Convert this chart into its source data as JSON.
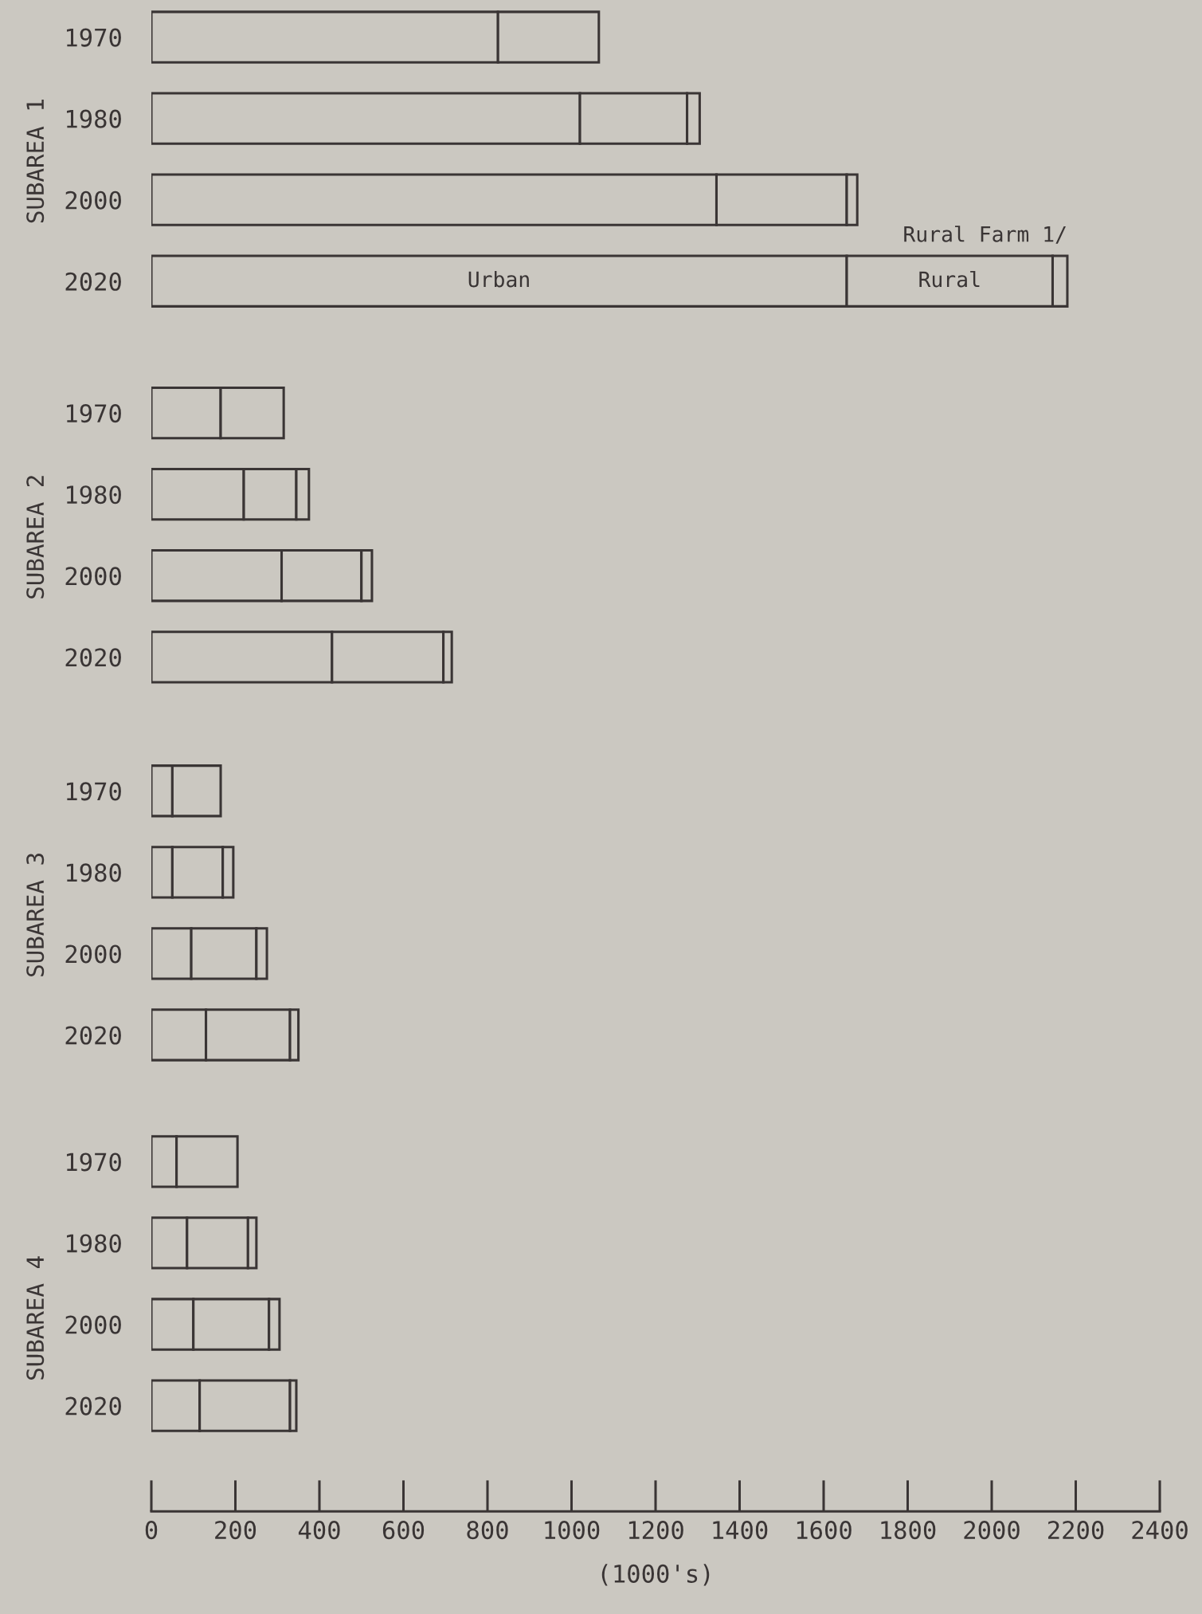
{
  "chart_data": [
    {
      "type": "bar",
      "orientation": "horizontal",
      "stacked": true,
      "ylabel": "SUBAREA 1",
      "categories": [
        "1970",
        "1980",
        "2000",
        "2020"
      ],
      "xlim": [
        0,
        2400
      ],
      "xticks": [
        0,
        200,
        400,
        600,
        800,
        1000,
        1200,
        1400,
        1600,
        1800,
        2000,
        2200,
        2400
      ],
      "tick_labels": "y",
      "grid": false,
      "legend": false,
      "series": [
        {
          "name": "Urban",
          "color": "#cbc8c1",
          "values": [
            825,
            1020,
            1345,
            1655
          ]
        },
        {
          "name": "Rural",
          "color": "#cbc8c1",
          "values": [
            240,
            255,
            310,
            490
          ]
        },
        {
          "name": "Rural Farm 1/",
          "color": "#cbc8c1",
          "values": [
            null,
            30,
            25,
            35
          ]
        }
      ]
    },
    {
      "type": "bar",
      "orientation": "horizontal",
      "stacked": true,
      "ylabel": "SUBAREA 2",
      "categories": [
        "1970",
        "1980",
        "2000",
        "2020"
      ],
      "xlim": [
        0,
        2400
      ],
      "xticks": [
        0,
        200,
        400,
        600,
        800,
        1000,
        1200,
        1400,
        1600,
        1800,
        2000,
        2200,
        2400
      ],
      "tick_labels": "y",
      "grid": false,
      "legend": false,
      "series": [
        {
          "color": "#cbc8c1",
          "values": [
            165,
            220,
            310,
            430
          ]
        },
        {
          "color": "#cbc8c1",
          "values": [
            150,
            125,
            190,
            265
          ]
        },
        {
          "color": "#cbc8c1",
          "values": [
            null,
            30,
            25,
            20
          ]
        }
      ]
    },
    {
      "type": "bar",
      "orientation": "horizontal",
      "stacked": true,
      "ylabel": "SUBAREA 3",
      "categories": [
        "1970",
        "1980",
        "2000",
        "2020"
      ],
      "xlim": [
        0,
        2400
      ],
      "xticks": [
        0,
        200,
        400,
        600,
        800,
        1000,
        1200,
        1400,
        1600,
        1800,
        2000,
        2200,
        2400
      ],
      "tick_labels": "y",
      "grid": false,
      "legend": false,
      "series": [
        {
          "color": "#cbc8c1",
          "values": [
            50,
            50,
            95,
            130
          ]
        },
        {
          "color": "#cbc8c1",
          "values": [
            115,
            120,
            155,
            200
          ]
        },
        {
          "color": "#cbc8c1",
          "values": [
            null,
            25,
            25,
            20
          ]
        }
      ]
    },
    {
      "type": "bar",
      "orientation": "horizontal",
      "stacked": true,
      "ylabel": "SUBAREA 4",
      "xlabel": "(1000's)",
      "categories": [
        "1970",
        "1980",
        "2000",
        "2020"
      ],
      "xlim": [
        0,
        2400
      ],
      "xticks": [
        0,
        200,
        400,
        600,
        800,
        1000,
        1200,
        1400,
        1600,
        1800,
        2000,
        2200,
        2400
      ],
      "grid": false,
      "legend": false,
      "series": [
        {
          "color": "#cbc8c1",
          "values": [
            60,
            85,
            100,
            115
          ]
        },
        {
          "color": "#cbc8c1",
          "values": [
            145,
            145,
            180,
            215
          ]
        },
        {
          "color": "#cbc8c1",
          "values": [
            null,
            20,
            25,
            15
          ]
        }
      ]
    }
  ]
}
